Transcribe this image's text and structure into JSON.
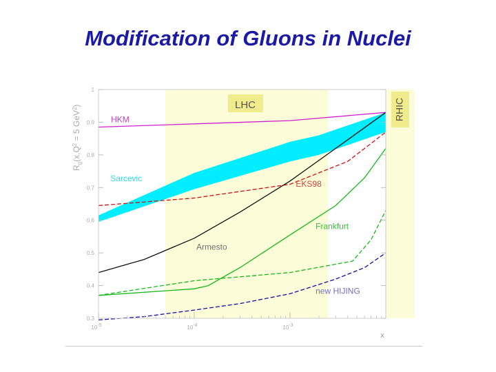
{
  "slide": {
    "title": "Modification of Gluons in Nuclei",
    "title_color": "#1a1aa6"
  },
  "chart_data": {
    "type": "line",
    "xscale": "log",
    "xlabel": "x",
    "ylabel": "R_g(x, Q² = 5 GeV²)",
    "ylabel_parts": {
      "base": "R",
      "sub": "g",
      "mid": "(x,Q",
      "sup1": "2",
      "eq": " = 5 GeV",
      "sup2": "2",
      "end": ")"
    },
    "xlim": [
      1e-05,
      0.01
    ],
    "ylim": [
      0.3,
      1.0
    ],
    "x_ticks": [
      {
        "value": 1e-05,
        "base": "10",
        "exp": "-5"
      },
      {
        "value": 0.0001,
        "base": "10",
        "exp": "-4"
      },
      {
        "value": 0.001,
        "base": "10",
        "exp": "-3"
      }
    ],
    "y_ticks": [
      {
        "value": 0.3,
        "label": "0.3"
      },
      {
        "value": 0.4,
        "label": "0.4"
      },
      {
        "value": 0.5,
        "label": "0.5"
      },
      {
        "value": 0.6,
        "label": "0.6"
      },
      {
        "value": 0.7,
        "label": "0.7"
      },
      {
        "value": 0.8,
        "label": "0.8"
      },
      {
        "value": 0.9,
        "label": "0.9"
      },
      {
        "value": 1.0,
        "label": "1"
      }
    ],
    "grid": false,
    "regions": [
      {
        "label": "LHC",
        "x_range": [
          5e-05,
          0.0025
        ],
        "color": "#fcfcd8",
        "box_color": "#f0ec8c"
      },
      {
        "label": "RHIC",
        "x_range": [
          0.01,
          0.013
        ],
        "color": "#fcfcd8",
        "box_color": "#f0ec8c"
      }
    ],
    "band": {
      "label": "Sarcevic",
      "color": "#00eeff",
      "label_color": "#30d8f0",
      "label_at": [
        1.33e-05,
        0.72
      ],
      "x": [
        1e-05,
        0.0001,
        0.001,
        0.002,
        0.01
      ],
      "upper": [
        0.615,
        0.745,
        0.84,
        0.86,
        0.93
      ],
      "lower": [
        0.595,
        0.695,
        0.78,
        0.8,
        0.87
      ]
    },
    "series": [
      {
        "name": "HKM",
        "color": "#d020d0",
        "dash": "",
        "label_color": "#c040c0",
        "label_at": [
          1.35e-05,
          0.9
        ],
        "x": [
          1e-05,
          0.0001,
          0.001,
          0.01
        ],
        "y": [
          0.885,
          0.895,
          0.905,
          0.93
        ]
      },
      {
        "name": "EKS98",
        "color": "#d01010",
        "dash": "6 3",
        "label_color": "#d04040",
        "label_at": [
          0.00115,
          0.703
        ],
        "x": [
          1e-05,
          0.0001,
          0.001,
          0.004,
          0.01
        ],
        "y": [
          0.645,
          0.668,
          0.71,
          0.78,
          0.87
        ]
      },
      {
        "name": "Armesto",
        "color": "#101010",
        "dash": "",
        "label_color": "#707070",
        "label_at": [
          0.000105,
          0.51
        ],
        "x": [
          1e-05,
          3e-05,
          0.0001,
          0.0003,
          0.001,
          0.003,
          0.01
        ],
        "y": [
          0.44,
          0.48,
          0.545,
          0.625,
          0.72,
          0.82,
          0.93
        ]
      },
      {
        "name": "Frankfurt",
        "color": "#18b818",
        "dash": "",
        "label_color": "#38c038",
        "label_at": [
          0.00185,
          0.573
        ],
        "x": [
          1e-05,
          0.0001,
          0.00014,
          0.0003,
          0.001,
          0.003,
          0.006,
          0.01
        ],
        "y": [
          0.37,
          0.39,
          0.4,
          0.455,
          0.555,
          0.645,
          0.73,
          0.82
        ]
      },
      {
        "name": "Frankfurt (dashed)",
        "color": "#18b818",
        "dash": "6 3",
        "x": [
          1e-05,
          0.0001,
          0.001,
          0.0045,
          0.007,
          0.01
        ],
        "y": [
          0.37,
          0.415,
          0.44,
          0.475,
          0.54,
          0.63
        ]
      },
      {
        "name": "new HIJING",
        "color": "#1010a8",
        "dash": "6 3",
        "label_color": "#7070c0",
        "label_at": [
          0.00185,
          0.375
        ],
        "x": [
          1e-05,
          3e-05,
          0.0001,
          0.0003,
          0.001,
          0.003,
          0.006,
          0.01
        ],
        "y": [
          0.295,
          0.305,
          0.325,
          0.345,
          0.375,
          0.42,
          0.455,
          0.5
        ]
      }
    ]
  }
}
